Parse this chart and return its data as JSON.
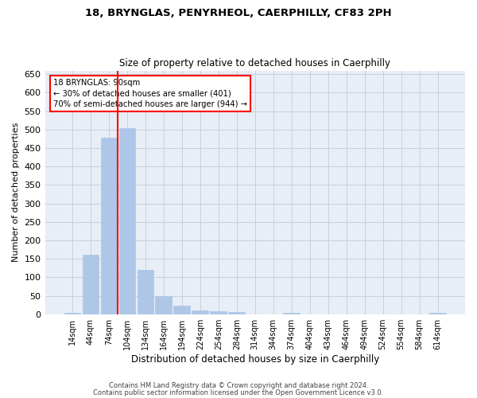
{
  "title": "18, BRYNGLAS, PENYRHEOL, CAERPHILLY, CF83 2PH",
  "subtitle": "Size of property relative to detached houses in Caerphilly",
  "xlabel": "Distribution of detached houses by size in Caerphilly",
  "ylabel": "Number of detached properties",
  "bar_color": "#aec6e8",
  "bar_edgecolor": "#aec6e8",
  "grid_color": "#c8d0dc",
  "background_color": "#e8eef6",
  "categories": [
    "14sqm",
    "44sqm",
    "74sqm",
    "104sqm",
    "134sqm",
    "164sqm",
    "194sqm",
    "224sqm",
    "254sqm",
    "284sqm",
    "314sqm",
    "344sqm",
    "374sqm",
    "404sqm",
    "434sqm",
    "464sqm",
    "494sqm",
    "524sqm",
    "554sqm",
    "584sqm",
    "614sqm"
  ],
  "values": [
    3,
    160,
    478,
    503,
    120,
    50,
    23,
    10,
    9,
    6,
    0,
    0,
    4,
    0,
    0,
    0,
    0,
    0,
    0,
    0,
    3
  ],
  "ylim": [
    0,
    660
  ],
  "yticks": [
    0,
    50,
    100,
    150,
    200,
    250,
    300,
    350,
    400,
    450,
    500,
    550,
    600,
    650
  ],
  "red_line_x": 2.5,
  "annotation_title": "18 BRYNGLAS: 90sqm",
  "annotation_line1": "← 30% of detached houses are smaller (401)",
  "annotation_line2": "70% of semi-detached houses are larger (944) →",
  "footer_line1": "Contains HM Land Registry data © Crown copyright and database right 2024.",
  "footer_line2": "Contains public sector information licensed under the Open Government Licence v3.0."
}
